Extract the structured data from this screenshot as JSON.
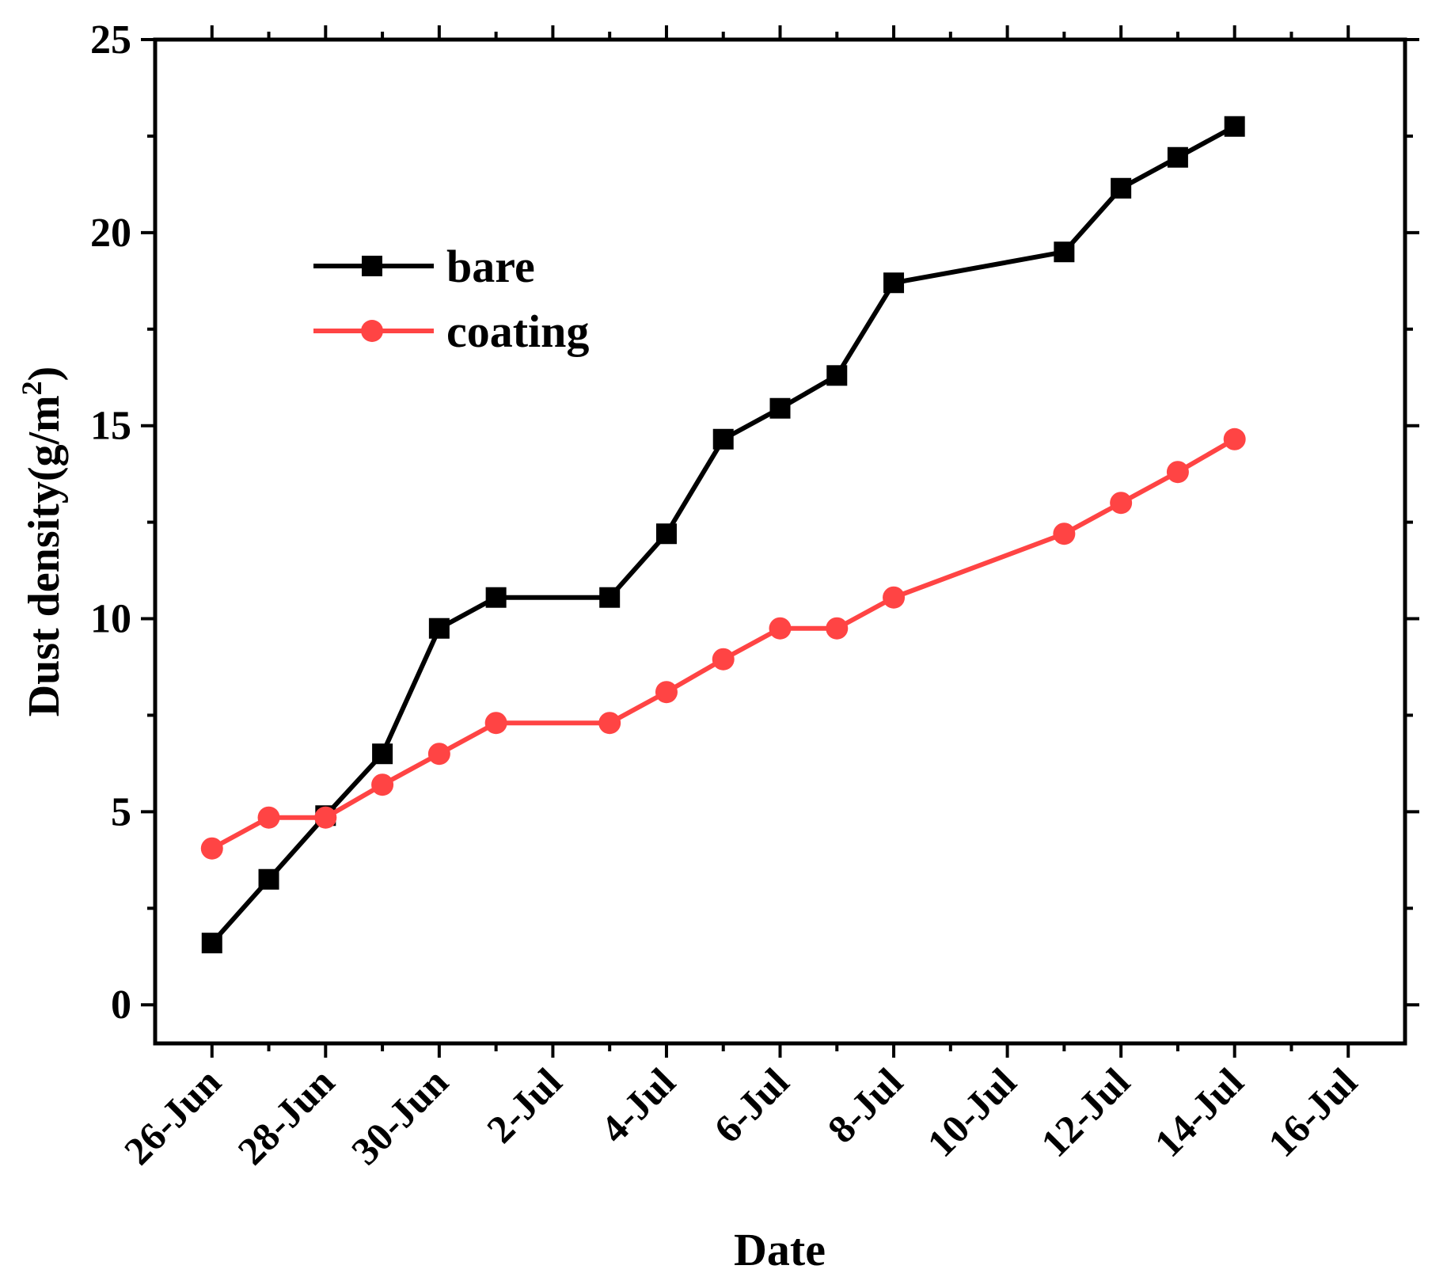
{
  "chart_data": {
    "type": "line",
    "xlabel": "Date",
    "ylabel": "Dust density(g/m",
    "ylabel_superscript": "2",
    "ylabel_close": ")",
    "ylim": [
      -1,
      25
    ],
    "yticks": [
      0,
      5,
      10,
      15,
      20,
      25
    ],
    "ytick_labels": [
      "0",
      "5",
      "10",
      "15",
      "20",
      "25"
    ],
    "xlim": [
      -1,
      21
    ],
    "xticks": [
      0,
      2,
      4,
      6,
      8,
      10,
      12,
      14,
      16,
      18,
      20
    ],
    "xtick_labels": [
      "26-Jun",
      "28-Jun",
      "30-Jun",
      "2-Jul",
      "4-Jul",
      "6-Jul",
      "8-Jul",
      "10-Jul",
      "12-Jul",
      "14-Jul",
      "16-Jul"
    ],
    "legend_position": "top-left",
    "series": [
      {
        "name": "bare",
        "color": "#000000",
        "marker": "square",
        "x": [
          0,
          1,
          2,
          3,
          4,
          5,
          7,
          8,
          9,
          10,
          11,
          12,
          15,
          16,
          17,
          18
        ],
        "y": [
          1.6,
          3.25,
          4.9,
          6.5,
          9.75,
          10.55,
          10.55,
          12.2,
          14.65,
          15.45,
          16.3,
          18.7,
          19.5,
          21.15,
          21.95,
          22.75
        ]
      },
      {
        "name": "coating",
        "color": "#ff4444",
        "marker": "circle",
        "x": [
          0,
          1,
          2,
          3,
          4,
          5,
          7,
          8,
          9,
          10,
          11,
          12,
          15,
          16,
          17,
          18
        ],
        "y": [
          4.05,
          4.85,
          4.85,
          5.7,
          6.5,
          7.3,
          7.3,
          8.1,
          8.95,
          9.75,
          9.75,
          10.55,
          12.2,
          13.0,
          13.8,
          14.65
        ]
      }
    ]
  }
}
